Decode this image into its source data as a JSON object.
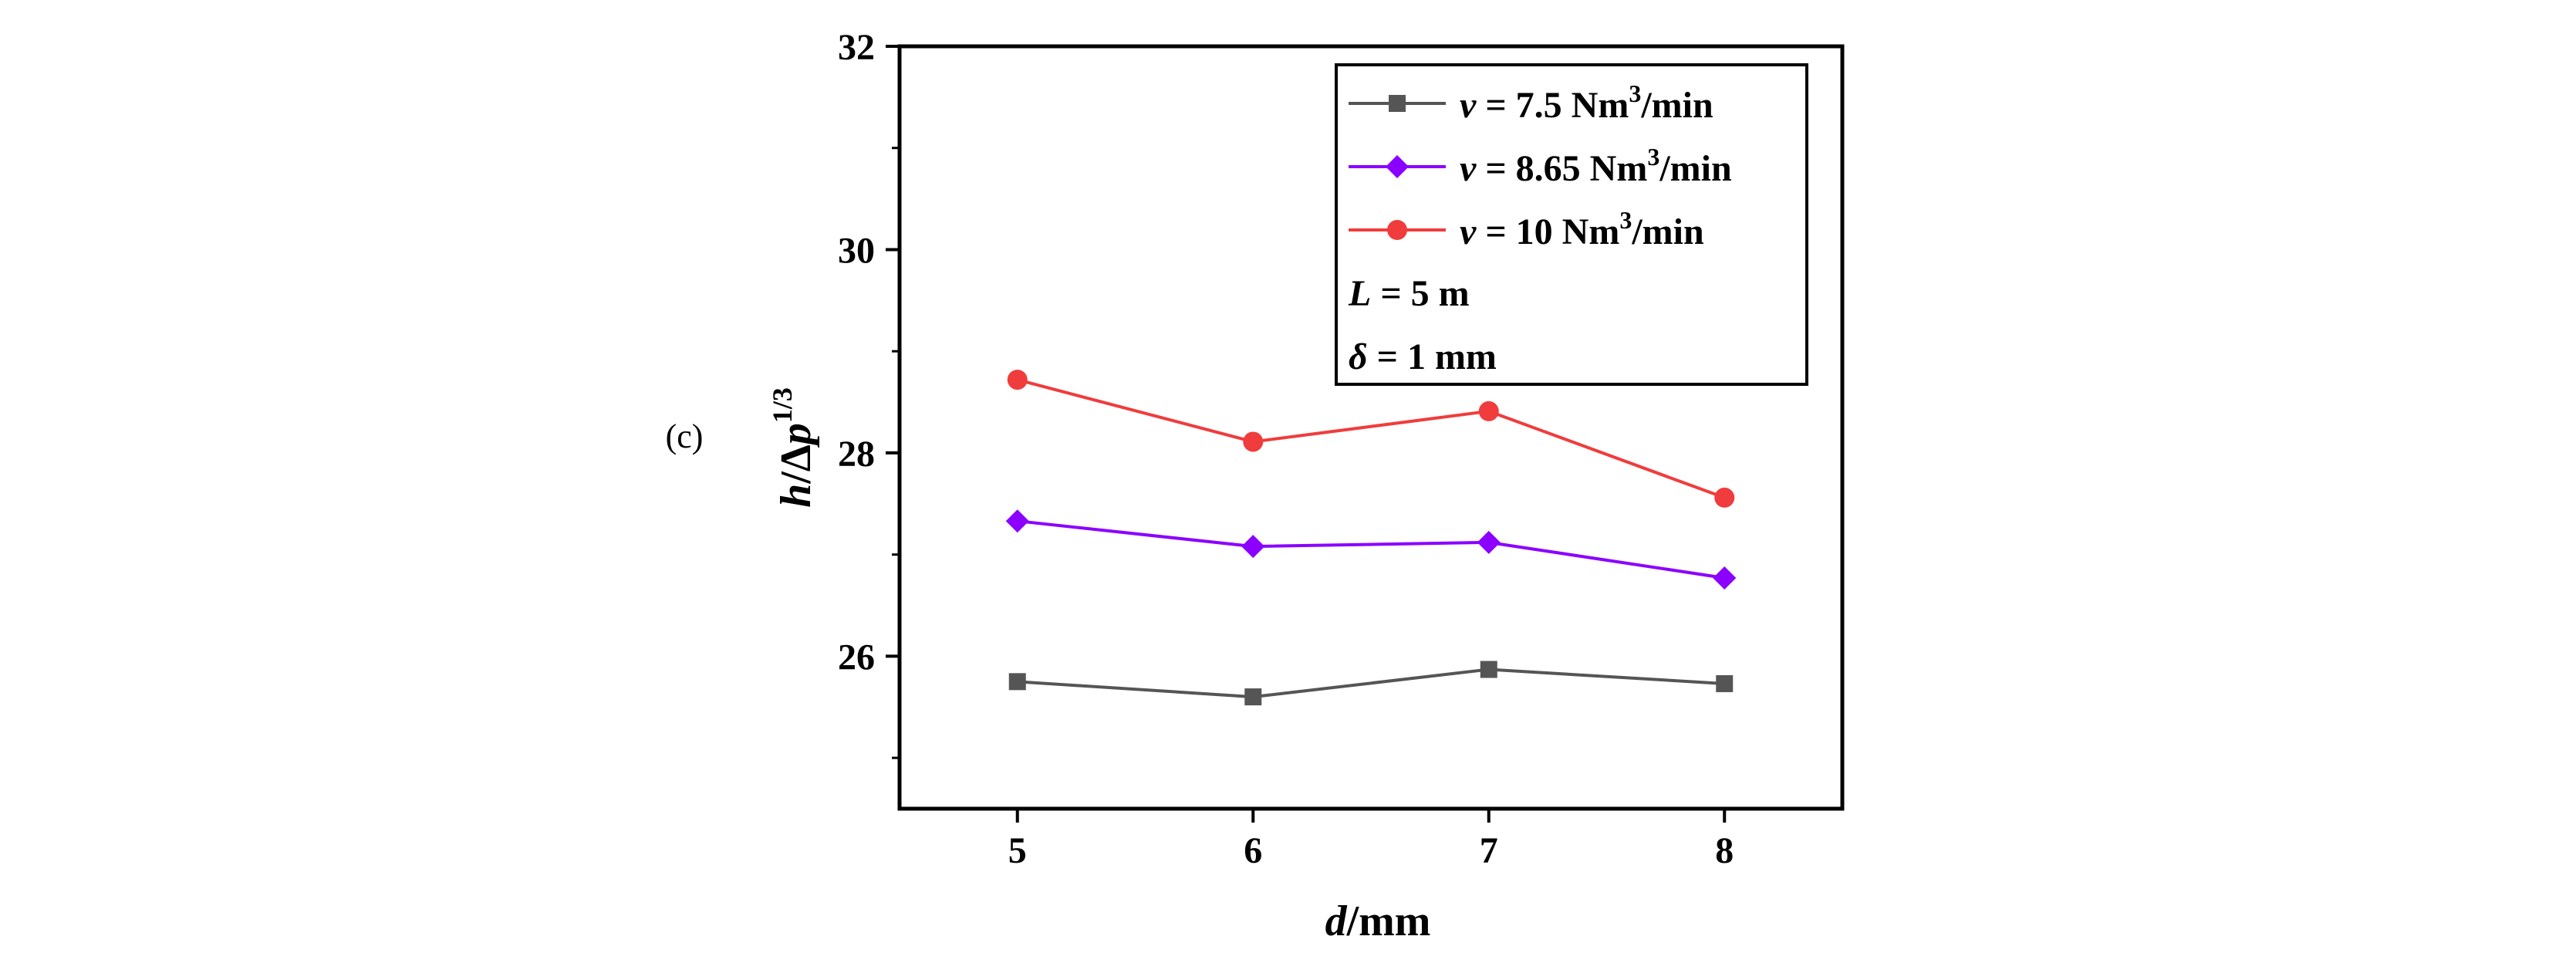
{
  "panel_label": "(c)",
  "chart_data": {
    "type": "line",
    "title": "",
    "xlabel": {
      "italic": "d",
      "rest": "/mm"
    },
    "ylabel": {
      "italic1": "h",
      "slash": "/",
      "delta": "Δ",
      "italic2": "p",
      "sup": "1/3"
    },
    "x": [
      5,
      6,
      7,
      8
    ],
    "xticks": [
      "5",
      "6",
      "7",
      "8"
    ],
    "xlim": [
      4.5,
      8.5
    ],
    "ylim": [
      24.5,
      32
    ],
    "yticks": [
      "26",
      "28",
      "30",
      "32"
    ],
    "yticks_values": [
      26,
      28,
      30,
      32
    ],
    "grid": false,
    "legend_position": "top-right",
    "series": [
      {
        "name": "v = 7.5 Nm3/min",
        "label": {
          "var": "v",
          "eq": " = 7.5 Nm",
          "sup": "3",
          "unit": "/min"
        },
        "values": [
          25.75,
          25.6,
          25.87,
          25.73
        ],
        "color": "#555555",
        "marker": "square"
      },
      {
        "name": "v = 8.65 Nm3/min",
        "label": {
          "var": "v",
          "eq": " = 8.65 Nm",
          "sup": "3",
          "unit": "/min"
        },
        "values": [
          27.33,
          27.08,
          27.12,
          26.77
        ],
        "color": "#8B00FF",
        "marker": "diamond"
      },
      {
        "name": "v = 10 Nm3/min",
        "label": {
          "var": "v",
          "eq": " = 10 Nm",
          "sup": "3",
          "unit": "/min"
        },
        "values": [
          28.72,
          28.11,
          28.41,
          27.56
        ],
        "color": "#F03C3C",
        "marker": "circle"
      }
    ],
    "annotations": [
      {
        "var": "L",
        "text": " = 5 m"
      },
      {
        "var": "δ",
        "text": " = 1 mm"
      }
    ]
  }
}
